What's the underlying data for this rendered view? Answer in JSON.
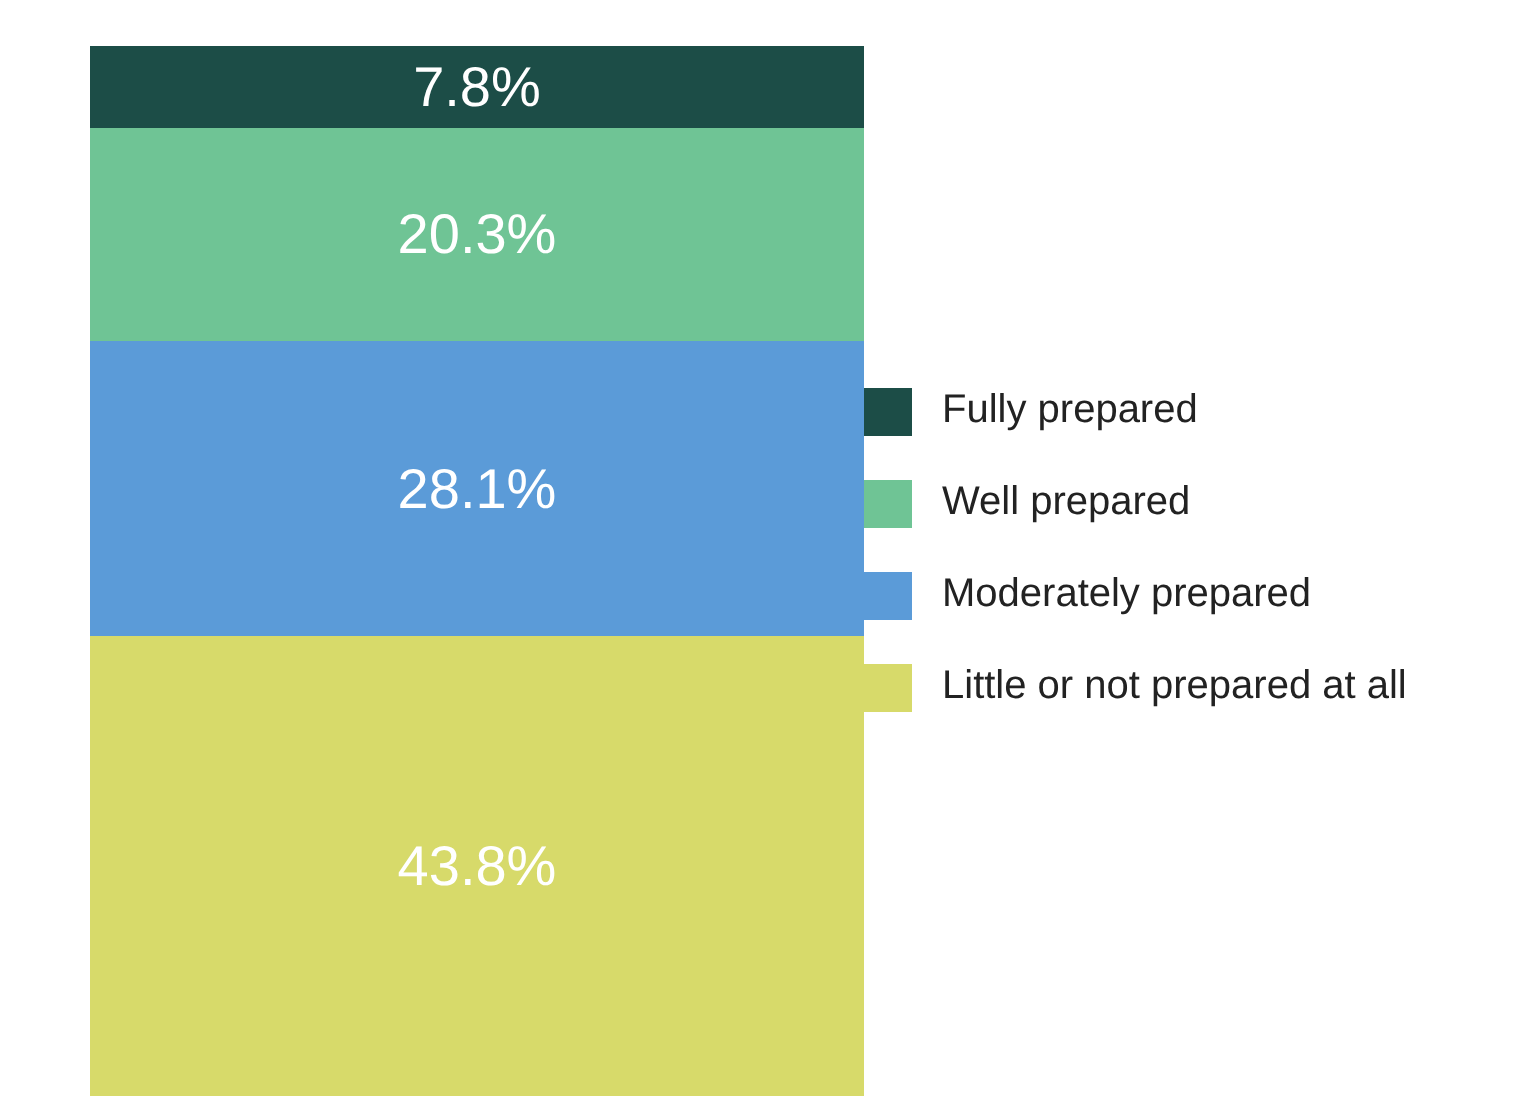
{
  "chart_data": {
    "type": "bar",
    "stacked": true,
    "categories": [
      null
    ],
    "legend": "right",
    "grid": false,
    "series": [
      {
        "name": "Little or not prepared at all",
        "color": "#d7da6a",
        "values": [
          43.8
        ],
        "value_labels": [
          "43.8%"
        ]
      },
      {
        "name": "Moderately prepared",
        "color": "#5b9bd8",
        "values": [
          28.1
        ],
        "value_labels": [
          "28.1%"
        ]
      },
      {
        "name": "Well prepared",
        "color": "#6fc495",
        "values": [
          20.3
        ],
        "value_labels": [
          "20.3%"
        ]
      },
      {
        "name": "Fully prepared",
        "color": "#1c4d47",
        "values": [
          7.8
        ],
        "value_labels": [
          "7.8%"
        ]
      }
    ]
  }
}
